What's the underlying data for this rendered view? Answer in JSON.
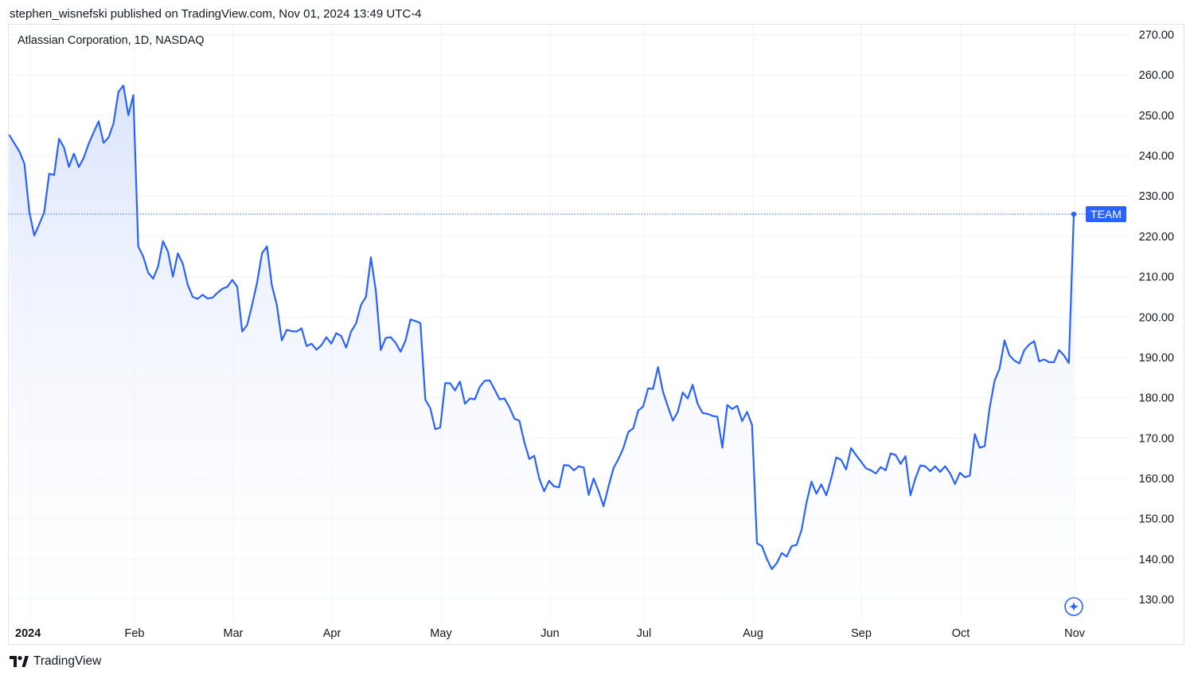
{
  "header": {
    "published_by": "stephen_wisnefski published on TradingView.com, Nov 01, 2024 13:49 UTC-4"
  },
  "symbol_title": "Atlassian Corporation, 1D, NASDAQ",
  "brand": {
    "name": "TradingView",
    "icon": "tradingview-logo-icon"
  },
  "colors": {
    "line": "#2962ff",
    "area_top": "#dbe4fd",
    "grid": "#f0f3fa",
    "label_bg": "#2962ff"
  },
  "chart_data": {
    "type": "area",
    "title": "Atlassian Corporation, 1D, NASDAQ",
    "series": [
      {
        "name": "TEAM",
        "x_start": "2024-01-02",
        "values": [
          245.0,
          243.0,
          241.0,
          238.0,
          226.0,
          220.2,
          223.0,
          226.0,
          235.5,
          235.2,
          244.2,
          242.0,
          237.2,
          240.5,
          237.2,
          239.5,
          243.0,
          245.8,
          248.5,
          243.2,
          244.5,
          248.0,
          255.8,
          257.4,
          250.0,
          255.0,
          217.5,
          215.0,
          211.0,
          209.5,
          212.5,
          218.8,
          216.2,
          210.0,
          215.8,
          213.2,
          208.0,
          205.0,
          204.5,
          205.5,
          204.6,
          204.8,
          206.0,
          207.0,
          207.5,
          209.2,
          207.5,
          196.4,
          198.0,
          203.0,
          208.5,
          215.8,
          217.5,
          207.8,
          203.0,
          194.2,
          196.8,
          196.5,
          196.4,
          197.2,
          192.8,
          193.4,
          191.9,
          193.0,
          195.0,
          193.4,
          196.0,
          195.3,
          192.4,
          196.4,
          198.4,
          203.0,
          205.0,
          214.8,
          206.5,
          191.8,
          194.8,
          195.0,
          193.6,
          191.4,
          194.2,
          199.4,
          199.0,
          198.5,
          179.5,
          177.4,
          172.2,
          172.6,
          183.6,
          183.6,
          181.8,
          184.0,
          178.5,
          179.8,
          179.6,
          182.7,
          184.2,
          184.3,
          182.0,
          179.6,
          179.8,
          177.6,
          174.8,
          174.3,
          169.0,
          164.8,
          165.6,
          160.0,
          156.8,
          159.4,
          158.0,
          157.8,
          163.3,
          163.2,
          162.0,
          163.0,
          162.7,
          155.9,
          160.0,
          156.8,
          153.1,
          158.0,
          162.5,
          164.8,
          167.5,
          171.5,
          172.4,
          176.8,
          177.8,
          182.3,
          182.2,
          187.6,
          181.5,
          177.8,
          174.3,
          176.5,
          181.3,
          179.8,
          183.2,
          178.5,
          176.2,
          176.0,
          175.5,
          175.3,
          167.6,
          178.2,
          177.2,
          178.0,
          174.2,
          176.5,
          173.2,
          143.9,
          143.2,
          140.0,
          137.5,
          139.0,
          141.5,
          140.6,
          143.2,
          143.5,
          147.2,
          154.0,
          159.2,
          156.2,
          158.5,
          155.8,
          160.0,
          165.2,
          164.6,
          162.2,
          167.5,
          165.8,
          164.2,
          162.5,
          162.0,
          161.2,
          162.8,
          162.0,
          166.2,
          165.8,
          163.6,
          165.5,
          155.8,
          160.0,
          163.2,
          163.0,
          161.8,
          163.0,
          161.6,
          163.0,
          161.3,
          158.6,
          161.4,
          160.3,
          160.7,
          171.0,
          167.6,
          168.0,
          177.5,
          184.2,
          187.2,
          194.2,
          190.5,
          189.2,
          188.5,
          191.8,
          193.2,
          194.0,
          189.0,
          189.5,
          188.8,
          188.8,
          191.8,
          190.5,
          188.6,
          225.5
        ]
      }
    ],
    "last_label": "TEAM",
    "x_ticks": [
      "2024",
      "Feb",
      "Mar",
      "Apr",
      "May",
      "Jun",
      "Jul",
      "Aug",
      "Sep",
      "Oct",
      "Nov"
    ],
    "y_ticks": [
      "130.00",
      "140.00",
      "150.00",
      "160.00",
      "170.00",
      "180.00",
      "190.00",
      "200.00",
      "210.00",
      "220.00",
      "230.00",
      "240.00",
      "250.00",
      "260.00",
      "270.00"
    ],
    "ylim": [
      126.0,
      272.0
    ],
    "grid": true,
    "y_axis_side": "right"
  }
}
